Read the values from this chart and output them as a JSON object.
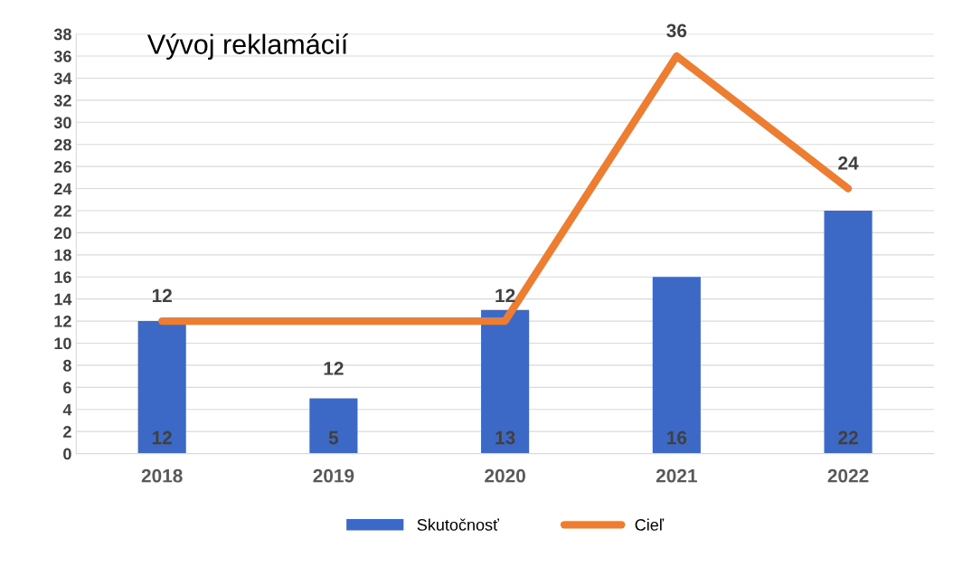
{
  "chart_data": {
    "type": "bar",
    "title": "Vývoj reklamácií",
    "categories": [
      "2018",
      "2019",
      "2020",
      "2021",
      "2022"
    ],
    "series": [
      {
        "name": "Skutočnosť",
        "color": "#3d69c6",
        "values": [
          12,
          5,
          13,
          16,
          22
        ]
      },
      {
        "name": "Cieľ",
        "type": "line",
        "color": "#ed7d31",
        "values": [
          12,
          12,
          12,
          36,
          24
        ]
      }
    ],
    "ylim": [
      0,
      38
    ],
    "yticks": [
      0,
      2,
      4,
      6,
      8,
      10,
      12,
      14,
      16,
      18,
      20,
      22,
      24,
      26,
      28,
      30,
      32,
      34,
      36,
      38
    ],
    "grid": "y",
    "legend": "bottom",
    "data_labels": true
  }
}
